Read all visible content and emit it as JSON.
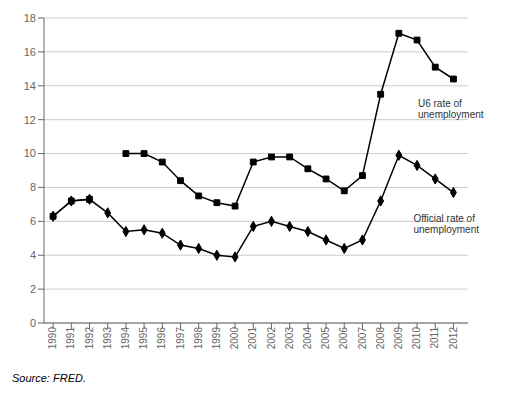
{
  "chart_data": {
    "type": "line",
    "x": [
      1990,
      1991,
      1992,
      1993,
      1994,
      1995,
      1996,
      1997,
      1998,
      1999,
      2000,
      2001,
      2002,
      2003,
      2004,
      2005,
      2006,
      2007,
      2008,
      2009,
      2010,
      2011,
      2012
    ],
    "xlim": [
      1989.5,
      2012.8
    ],
    "xticks": [
      1990,
      1991,
      1992,
      1993,
      1994,
      1995,
      1996,
      1997,
      1998,
      1999,
      2000,
      2001,
      2002,
      2003,
      2004,
      2005,
      2006,
      2007,
      2008,
      2009,
      2010,
      2011,
      2012
    ],
    "ylim": [
      0,
      18
    ],
    "yticks": [
      0,
      2,
      4,
      6,
      8,
      10,
      12,
      14,
      16,
      18
    ],
    "grid": true,
    "series": [
      {
        "values": [
          6.3,
          7.2,
          7.3,
          null,
          10.0,
          10.0,
          9.5,
          8.4,
          7.5,
          7.1,
          6.9,
          9.5,
          9.8,
          9.8,
          9.1,
          8.5,
          7.8,
          8.7,
          13.5,
          17.1,
          16.7,
          15.1,
          14.4
        ],
        "color": "#000000",
        "marker": "square"
      },
      {
        "values": [
          6.3,
          7.2,
          7.3,
          6.5,
          5.4,
          5.5,
          5.3,
          4.6,
          4.4,
          4.0,
          3.9,
          5.7,
          6.0,
          5.7,
          5.4,
          4.9,
          4.4,
          4.9,
          7.2,
          9.9,
          9.3,
          8.5,
          7.7
        ],
        "color": "#000000",
        "marker": "diamond"
      }
    ],
    "annotations": [
      {
        "text": "U6 rate of\nunemployment",
        "x": 2010.05,
        "y": 13.3
      },
      {
        "text": "Official rate of\nunemployment",
        "x": 2009.8,
        "y": 6.5
      }
    ],
    "source": "Source: FRED."
  }
}
